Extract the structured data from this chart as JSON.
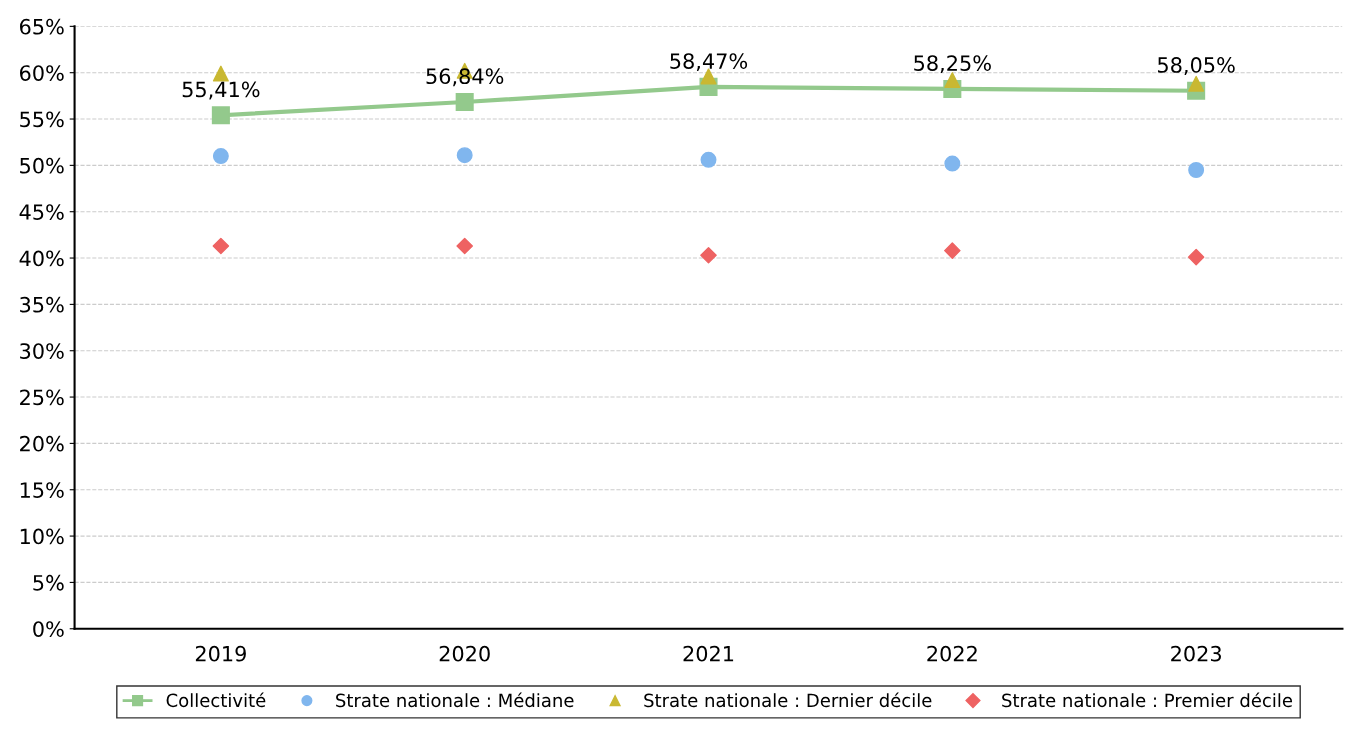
{
  "chart_data": {
    "type": "line",
    "categories": [
      "2019",
      "2020",
      "2021",
      "2022",
      "2023"
    ],
    "series": [
      {
        "name": "Collectivité",
        "marker": "square",
        "color": "#93c98c",
        "values": [
          55.41,
          56.84,
          58.47,
          58.25,
          58.05
        ],
        "value_labels": [
          "55,41%",
          "56,84%",
          "58,47%",
          "58,25%",
          "58,05%"
        ]
      },
      {
        "name": "Strate nationale : Médiane",
        "type": "scatter",
        "marker": "circle",
        "color": "#80b6ee",
        "values": [
          51.0,
          51.1,
          50.6,
          50.2,
          49.5
        ]
      },
      {
        "name": "Strate nationale : Dernier décile",
        "type": "scatter",
        "marker": "triangle",
        "color": "#c9b832",
        "values": [
          59.9,
          60.2,
          59.6,
          59.2,
          58.8
        ]
      },
      {
        "name": "Strate nationale : Premier décile",
        "type": "scatter",
        "marker": "diamond",
        "color": "#ee6262",
        "values": [
          41.3,
          41.3,
          40.3,
          40.8,
          40.1
        ]
      }
    ],
    "ylim": [
      0,
      65
    ],
    "yticks": [
      {
        "value": 0,
        "label": "0%"
      },
      {
        "value": 5,
        "label": "5%"
      },
      {
        "value": 10,
        "label": "10%"
      },
      {
        "value": 15,
        "label": "15%"
      },
      {
        "value": 20,
        "label": "20%"
      },
      {
        "value": 25,
        "label": "25%"
      },
      {
        "value": 30,
        "label": "30%"
      },
      {
        "value": 35,
        "label": "35%"
      },
      {
        "value": 40,
        "label": "40%"
      },
      {
        "value": 45,
        "label": "45%"
      },
      {
        "value": 50,
        "label": "50%"
      },
      {
        "value": 55,
        "label": "55%"
      },
      {
        "value": 60,
        "label": "60%"
      },
      {
        "value": 65,
        "label": "65%"
      }
    ],
    "grid": "y",
    "legend": "bottom"
  }
}
